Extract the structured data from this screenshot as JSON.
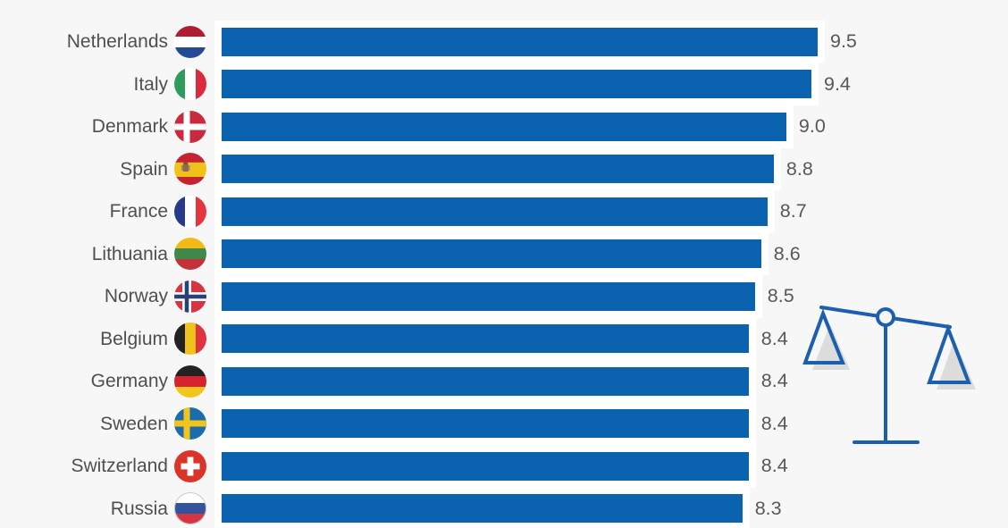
{
  "chart_data": {
    "type": "bar",
    "orientation": "horizontal",
    "title": "",
    "categories": [
      "Netherlands",
      "Italy",
      "Denmark",
      "Spain",
      "France",
      "Lithuania",
      "Norway",
      "Belgium",
      "Germany",
      "Sweden",
      "Switzerland",
      "Russia"
    ],
    "values": [
      9.5,
      9.4,
      9.0,
      8.8,
      8.7,
      8.6,
      8.5,
      8.4,
      8.4,
      8.4,
      8.4,
      8.3
    ],
    "value_labels": [
      "9.5",
      "9.4",
      "9.0",
      "8.8",
      "8.7",
      "8.6",
      "8.5",
      "8.4",
      "8.4",
      "8.4",
      "8.4",
      "8.3"
    ],
    "xlim": [
      0,
      9.5
    ],
    "grid": false,
    "legend": false,
    "value_labels_shown": true,
    "category_icons": "circular country flags"
  },
  "rows": [
    {
      "label": "Netherlands",
      "value": 9.5,
      "value_label": "9.5",
      "flag": {
        "type": "h",
        "colors": [
          "#b01d31",
          "#ffffff",
          "#264995"
        ]
      }
    },
    {
      "label": "Italy",
      "value": 9.4,
      "value_label": "9.4",
      "flag": {
        "type": "v",
        "colors": [
          "#2e9c5c",
          "#ffffff",
          "#d92b3d"
        ]
      }
    },
    {
      "label": "Denmark",
      "value": 9.0,
      "value_label": "9.0",
      "flag": {
        "type": "nordic",
        "bg": "#c92a3d",
        "cross": "#ffffff",
        "cross_w": 7
      }
    },
    {
      "label": "Spain",
      "value": 8.8,
      "value_label": "8.8",
      "flag": {
        "type": "h",
        "colors": [
          "#c62330",
          "#f2c21c",
          "#c62330"
        ],
        "ratios": [
          0.3,
          0.45,
          0.25
        ],
        "emblem": true
      }
    },
    {
      "label": "France",
      "value": 8.7,
      "value_label": "8.7",
      "flag": {
        "type": "v",
        "colors": [
          "#26398c",
          "#ffffff",
          "#e5353f"
        ]
      }
    },
    {
      "label": "Lithuania",
      "value": 8.6,
      "value_label": "8.6",
      "flag": {
        "type": "h",
        "colors": [
          "#f3b91b",
          "#41894b",
          "#c43138"
        ]
      }
    },
    {
      "label": "Norway",
      "value": 8.5,
      "value_label": "8.5",
      "flag": {
        "type": "nordic",
        "bg": "#d63540",
        "cross": "#ffffff",
        "cross_w": 10,
        "inner": "#2b3f77",
        "inner_w": 4.5
      }
    },
    {
      "label": "Belgium",
      "value": 8.4,
      "value_label": "8.4",
      "flag": {
        "type": "v",
        "colors": [
          "#222222",
          "#f2c21c",
          "#e03340"
        ]
      }
    },
    {
      "label": "Germany",
      "value": 8.4,
      "value_label": "8.4",
      "flag": {
        "type": "h",
        "colors": [
          "#222222",
          "#d8232e",
          "#f0c51c"
        ]
      }
    },
    {
      "label": "Sweden",
      "value": 8.4,
      "value_label": "8.4",
      "flag": {
        "type": "nordic",
        "bg": "#1a6cab",
        "cross": "#f2c41e",
        "cross_w": 7
      }
    },
    {
      "label": "Switzerland",
      "value": 8.4,
      "value_label": "8.4",
      "flag": {
        "type": "plus",
        "bg": "#da3327",
        "cross": "#ffffff"
      }
    },
    {
      "label": "Russia",
      "value": 8.3,
      "value_label": "8.3",
      "flag": {
        "type": "h",
        "colors": [
          "#ffffff",
          "#32549c",
          "#d53542"
        ],
        "ring": "#c9c9c9"
      }
    }
  ],
  "colors": {
    "background": "#f7f7f7",
    "bar": "#0b62af",
    "bar_halo": "#ffffff",
    "label_text": "#4f4f4f",
    "value_text": "#58585a",
    "scale_icon": "#1c5fae",
    "scale_shadow": "#dcdcdc"
  },
  "decoration": {
    "balance_scale_icon": "tilted balance scale, left pan higher than right, blue outline with gray pan shadows"
  }
}
